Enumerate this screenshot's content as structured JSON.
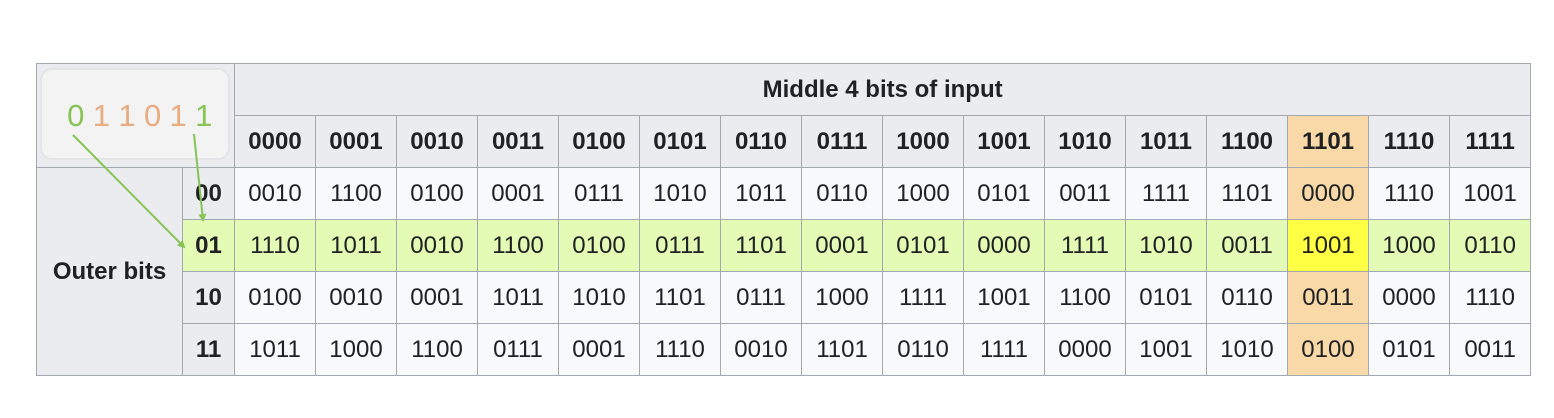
{
  "input_bits": [
    "0",
    "1",
    "1",
    "0",
    "1",
    "1"
  ],
  "middle_header": "Middle 4 bits of input",
  "outer_header": "Outer bits",
  "columns": [
    "0000",
    "0001",
    "0010",
    "0011",
    "0100",
    "0101",
    "0110",
    "0111",
    "1000",
    "1001",
    "1010",
    "1011",
    "1100",
    "1101",
    "1110",
    "1111"
  ],
  "rows": [
    {
      "label": "00",
      "cells": [
        "0010",
        "1100",
        "0100",
        "0001",
        "0111",
        "1010",
        "1011",
        "0110",
        "1000",
        "0101",
        "0011",
        "1111",
        "1101",
        "0000",
        "1110",
        "1001"
      ]
    },
    {
      "label": "01",
      "cells": [
        "1110",
        "1011",
        "0010",
        "1100",
        "0100",
        "0111",
        "1101",
        "0001",
        "0101",
        "0000",
        "1111",
        "1010",
        "0011",
        "1001",
        "1000",
        "0110"
      ]
    },
    {
      "label": "10",
      "cells": [
        "0100",
        "0010",
        "0001",
        "1011",
        "1010",
        "1101",
        "0111",
        "1000",
        "1111",
        "1001",
        "1100",
        "0101",
        "0110",
        "0011",
        "0000",
        "1110"
      ]
    },
    {
      "label": "11",
      "cells": [
        "1011",
        "1000",
        "1100",
        "0111",
        "0001",
        "1110",
        "0010",
        "1101",
        "0110",
        "1111",
        "0000",
        "1001",
        "1010",
        "0100",
        "0101",
        "0011"
      ]
    }
  ],
  "highlight": {
    "row_index": 1,
    "col_index": 13
  },
  "colors": {
    "outer_bit": "#88c455",
    "middle_bit": "#e9ab80",
    "row_highlight": "#e3fbb5",
    "col_highlight": "#fad9a9",
    "intersection": "#ffff44",
    "header_bg": "#eaecf0",
    "cell_bg": "#f8f9fa",
    "arrow": "#88c455"
  }
}
